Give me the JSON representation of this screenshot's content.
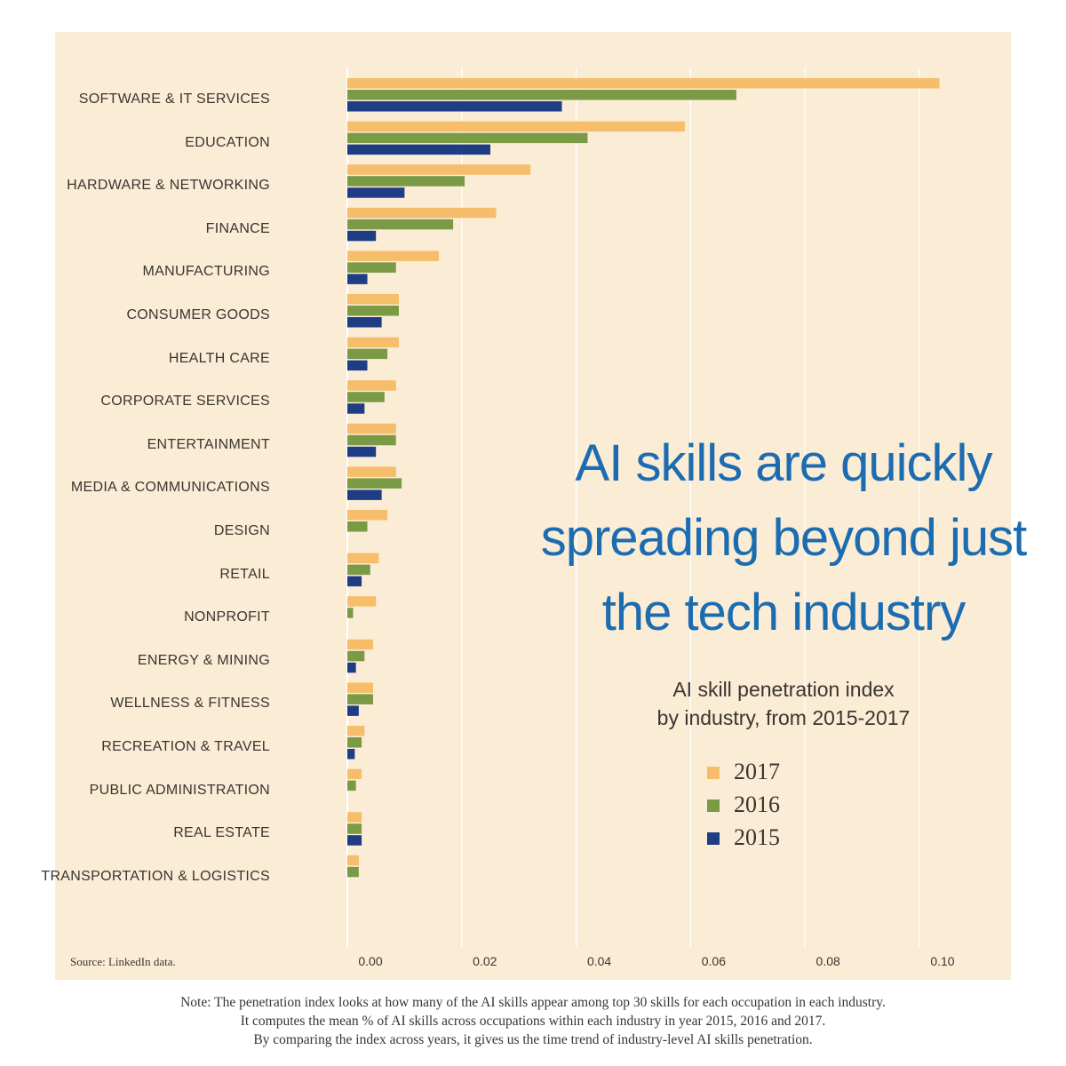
{
  "chart_data": {
    "type": "bar",
    "orientation": "horizontal",
    "categories": [
      "SOFTWARE & IT SERVICES",
      "EDUCATION",
      "HARDWARE & NETWORKING",
      "FINANCE",
      "MANUFACTURING",
      "CONSUMER GOODS",
      "HEALTH CARE",
      "CORPORATE SERVICES",
      "ENTERTAINMENT",
      "MEDIA & COMMUNICATIONS",
      "DESIGN",
      "RETAIL",
      "NONPROFIT",
      "ENERGY & MINING",
      "WELLNESS & FITNESS",
      "RECREATION & TRAVEL",
      "PUBLIC ADMINISTRATION",
      "REAL ESTATE",
      "TRANSPORTATION & LOGISTICS"
    ],
    "series": [
      {
        "name": "2017",
        "color": "#f6bd6a",
        "values": [
          0.1035,
          0.059,
          0.032,
          0.026,
          0.016,
          0.009,
          0.009,
          0.0085,
          0.0085,
          0.0085,
          0.007,
          0.0055,
          0.005,
          0.0045,
          0.0045,
          0.003,
          0.0025,
          0.0025,
          0.002
        ]
      },
      {
        "name": "2016",
        "color": "#7a9a45",
        "values": [
          0.068,
          0.042,
          0.0205,
          0.0185,
          0.0085,
          0.009,
          0.007,
          0.0065,
          0.0085,
          0.0095,
          0.0035,
          0.004,
          0.001,
          0.003,
          0.0045,
          0.0025,
          0.0015,
          0.0025,
          0.002
        ]
      },
      {
        "name": "2015",
        "color": "#1f3d85",
        "values": [
          0.0375,
          0.025,
          0.01,
          0.005,
          0.0035,
          0.006,
          0.0035,
          0.003,
          0.005,
          0.006,
          null,
          0.0025,
          null,
          0.0015,
          0.002,
          0.0013,
          null,
          0.0025,
          null
        ]
      }
    ],
    "xlim": [
      0,
      0.116
    ],
    "xticks": [
      "0.00",
      "0.02",
      "0.04",
      "0.06",
      "0.08",
      "0.10"
    ],
    "xtick_values": [
      0,
      0.02,
      0.04,
      0.06,
      0.08,
      0.1
    ],
    "grid": "vertical",
    "title": "AI skills are quickly spreading beyond just the tech industry",
    "subtitle": "AI skill penetration index by industry, from 2015-2017",
    "legend": "right-middle"
  },
  "headline_lines": [
    "AI skills are quickly",
    "spreading beyond just",
    "the tech industry"
  ],
  "subtitle_lines": [
    "AI skill penetration index",
    "by industry, from 2015-2017"
  ],
  "source": "Source: LinkedIn data.",
  "note_lines": [
    "Note: The penetration index looks at how many of the AI skills appear among top 30 skills for each occupation in each industry.",
    "It computes the mean % of AI skills across occupations within each industry in year 2015, 2016 and 2017.",
    "By comparing the index across years, it gives us the time trend of industry-level AI skills penetration."
  ]
}
